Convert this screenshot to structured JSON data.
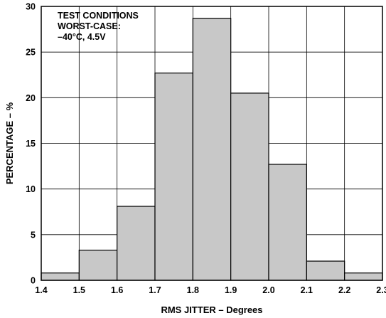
{
  "chart_data": {
    "type": "bar",
    "title": "",
    "xlabel": "RMS JITTER – Degrees",
    "ylabel": "PERCENTAGE – %",
    "xlim": [
      1.4,
      2.3
    ],
    "ylim": [
      0,
      30
    ],
    "x_ticks": [
      "1.4",
      "1.5",
      "1.6",
      "1.7",
      "1.8",
      "1.9",
      "2.0",
      "2.1",
      "2.2",
      "2.3"
    ],
    "y_ticks": [
      "0",
      "5",
      "10",
      "15",
      "20",
      "25",
      "30"
    ],
    "grid": true,
    "bar_color": "#c8c8c8",
    "annotation": [
      "TEST CONDITIONS",
      "WORST-CASE:",
      "–40°C, 4.5V"
    ],
    "bins": [
      {
        "from": 1.4,
        "to": 1.5,
        "value": 0.8
      },
      {
        "from": 1.5,
        "to": 1.6,
        "value": 3.3
      },
      {
        "from": 1.6,
        "to": 1.7,
        "value": 8.1
      },
      {
        "from": 1.7,
        "to": 1.8,
        "value": 22.7
      },
      {
        "from": 1.8,
        "to": 1.9,
        "value": 28.7
      },
      {
        "from": 1.9,
        "to": 2.0,
        "value": 20.5
      },
      {
        "from": 2.0,
        "to": 2.1,
        "value": 12.7
      },
      {
        "from": 2.1,
        "to": 2.2,
        "value": 2.1
      },
      {
        "from": 2.2,
        "to": 2.3,
        "value": 0.8
      }
    ]
  }
}
